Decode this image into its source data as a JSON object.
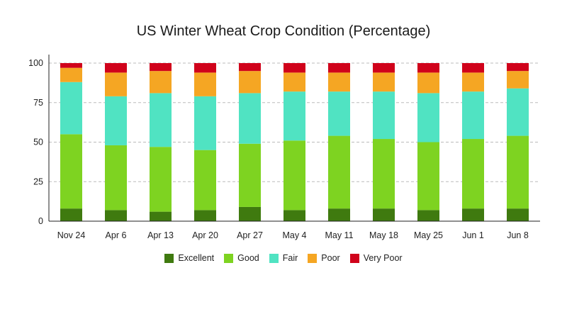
{
  "chart_data": {
    "type": "bar",
    "stacked": true,
    "title": "US Winter Wheat Crop Condition (Percentage)",
    "xlabel": "",
    "ylabel": "",
    "ylim": [
      0,
      100
    ],
    "yticks": [
      0,
      25,
      50,
      75,
      100
    ],
    "grid": true,
    "legend_position": "bottom",
    "categories": [
      "Nov 24",
      "Apr 6",
      "Apr 13",
      "Apr 20",
      "Apr 27",
      "May 4",
      "May 11",
      "May 18",
      "May 25",
      "Jun 1",
      "Jun 8"
    ],
    "series": [
      {
        "name": "Excellent",
        "color": "#3f7a0f",
        "values": [
          8,
          7,
          6,
          7,
          9,
          7,
          8,
          8,
          7,
          8,
          8
        ]
      },
      {
        "name": "Good",
        "color": "#7ed321",
        "values": [
          47,
          41,
          41,
          38,
          40,
          44,
          46,
          44,
          43,
          44,
          46
        ]
      },
      {
        "name": "Fair",
        "color": "#50e3c2",
        "values": [
          33,
          31,
          34,
          34,
          32,
          31,
          28,
          30,
          31,
          30,
          30
        ]
      },
      {
        "name": "Poor",
        "color": "#f5a623",
        "values": [
          9,
          15,
          14,
          15,
          14,
          12,
          12,
          12,
          13,
          12,
          11
        ]
      },
      {
        "name": "Very Poor",
        "color": "#d0021b",
        "values": [
          3,
          6,
          5,
          6,
          5,
          6,
          6,
          6,
          6,
          6,
          5
        ]
      }
    ]
  }
}
